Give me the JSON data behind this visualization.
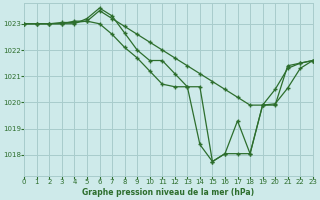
{
  "title": "Graphe pression niveau de la mer (hPa)",
  "bg_color": "#ceeaea",
  "grid_color": "#a8cccc",
  "line_color": "#2d6e2d",
  "xlim": [
    0,
    23
  ],
  "ylim": [
    1017.2,
    1023.8
  ],
  "yticks": [
    1018,
    1019,
    1020,
    1021,
    1022,
    1023
  ],
  "xticks": [
    0,
    1,
    2,
    3,
    4,
    5,
    6,
    7,
    8,
    9,
    10,
    11,
    12,
    13,
    14,
    15,
    16,
    17,
    18,
    19,
    20,
    21,
    22,
    23
  ],
  "line1_x": [
    0,
    1,
    2,
    3,
    4,
    5,
    6,
    7,
    8,
    9,
    10,
    11,
    12,
    13,
    14,
    15,
    16,
    17,
    18,
    19,
    20,
    21,
    22,
    23
  ],
  "line1_y": [
    1023.0,
    1023.0,
    1023.0,
    1023.05,
    1023.05,
    1023.1,
    1023.5,
    1023.2,
    1022.9,
    1022.6,
    1022.3,
    1022.0,
    1021.7,
    1021.4,
    1021.1,
    1020.8,
    1020.5,
    1020.2,
    1019.9,
    1019.9,
    1019.9,
    1021.4,
    1021.5,
    1021.6
  ],
  "line2_x": [
    0,
    1,
    2,
    3,
    4,
    5,
    6,
    7,
    8,
    9,
    10,
    11,
    12,
    13,
    14,
    15,
    16,
    17,
    18,
    19,
    20,
    21,
    22,
    23
  ],
  "line2_y": [
    1023.0,
    1023.0,
    1023.0,
    1023.0,
    1023.1,
    1023.1,
    1023.0,
    1022.6,
    1022.1,
    1021.7,
    1021.2,
    1020.7,
    1020.6,
    1020.6,
    1018.4,
    1017.75,
    1018.05,
    1018.05,
    1018.05,
    1019.9,
    1020.5,
    1021.3,
    1021.5,
    1021.6
  ],
  "line3_x": [
    0,
    1,
    2,
    3,
    4,
    5,
    6,
    7,
    8,
    9,
    10,
    11,
    12,
    13,
    14,
    15,
    16,
    17,
    18,
    19,
    20,
    21,
    22,
    23
  ],
  "line3_y": [
    1023.0,
    1023.0,
    1023.0,
    1023.0,
    1023.0,
    1023.2,
    1023.6,
    1023.3,
    1022.65,
    1022.0,
    1021.6,
    1021.6,
    1021.1,
    1020.6,
    1020.6,
    1017.75,
    1018.05,
    1019.3,
    1018.05,
    1019.9,
    1019.95,
    1020.55,
    1021.3,
    1021.6
  ]
}
